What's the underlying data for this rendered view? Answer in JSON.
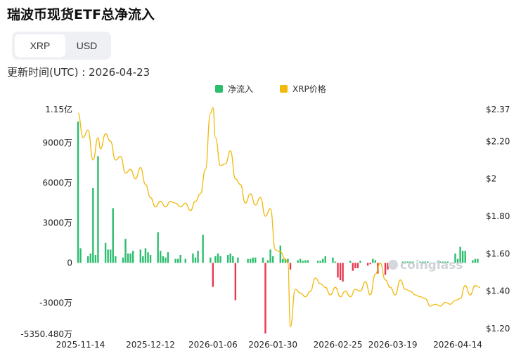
{
  "page": {
    "title": "瑞波币现货ETF总净流入",
    "updated": "更新时间(UTC) : 2026-04-23"
  },
  "tabs": [
    "XRP",
    "USD"
  ],
  "active_tab": "XRP",
  "watermark": "coinglass",
  "colors": {
    "inflow": "#2dbd6e",
    "outflow": "#e8384f",
    "price": "#f0b90b",
    "axis_text": "#222222"
  },
  "chart_data": {
    "type": "bar",
    "legend": [
      {
        "label": "净流入",
        "color": "#2dbd6e"
      },
      {
        "label": "XRP价格",
        "color": "#f0b90b"
      }
    ],
    "legend_position": "top-center",
    "grid": false,
    "x_ticks": [
      "2025-11-14",
      "2025-12-12",
      "2026-01-06",
      "2026-01-30",
      "2026-02-25",
      "2026-03-19",
      "2026-04-14"
    ],
    "y_left": {
      "min": -53504800,
      "max": 115000000,
      "ticks": [
        -53504800,
        -30000000,
        0,
        30000000,
        60000000,
        90000000,
        115000000
      ],
      "tick_labels": [
        "-5350.480万",
        "-3000万",
        "0",
        "3000万",
        "6000万",
        "9000万",
        "1.15亿"
      ]
    },
    "y_right": {
      "min": 1.17,
      "max": 2.37,
      "ticks": [
        1.2,
        1.4,
        1.6,
        1.8,
        2,
        2.2,
        2.37
      ],
      "tick_labels": [
        "$1.20",
        "$1.40",
        "$1.60",
        "$1.80",
        "$2",
        "$2.20",
        "$2.37"
      ]
    },
    "start_date": "2025-11-13",
    "end_date": "2026-04-23",
    "series": [
      {
        "name": "净流入",
        "dates": [
          "2025-11-13",
          "2025-11-14",
          "2025-11-17",
          "2025-11-18",
          "2025-11-19",
          "2025-11-20",
          "2025-11-21",
          "2025-11-24",
          "2025-11-25",
          "2025-11-26",
          "2025-11-27",
          "2025-11-28",
          "2025-12-01",
          "2025-12-02",
          "2025-12-03",
          "2025-12-04",
          "2025-12-05",
          "2025-12-08",
          "2025-12-09",
          "2025-12-10",
          "2025-12-11",
          "2025-12-12",
          "2025-12-15",
          "2025-12-16",
          "2025-12-17",
          "2025-12-18",
          "2025-12-19",
          "2025-12-22",
          "2025-12-23",
          "2025-12-24",
          "2025-12-26",
          "2025-12-29",
          "2025-12-30",
          "2025-12-31",
          "2026-01-02",
          "2026-01-05",
          "2026-01-06",
          "2026-01-07",
          "2026-01-08",
          "2026-01-09",
          "2026-01-12",
          "2026-01-13",
          "2026-01-14",
          "2026-01-15",
          "2026-01-16",
          "2026-01-20",
          "2026-01-21",
          "2026-01-22",
          "2026-01-23",
          "2026-01-26",
          "2026-01-27",
          "2026-01-28",
          "2026-01-29",
          "2026-01-30",
          "2026-02-02",
          "2026-02-03",
          "2026-02-04",
          "2026-02-05",
          "2026-02-06",
          "2026-02-09",
          "2026-02-10",
          "2026-02-11",
          "2026-02-12",
          "2026-02-13",
          "2026-02-17",
          "2026-02-18",
          "2026-02-19",
          "2026-02-20",
          "2026-02-23",
          "2026-02-24",
          "2026-02-25",
          "2026-02-26",
          "2026-02-27",
          "2026-03-02",
          "2026-03-03",
          "2026-03-04",
          "2026-03-05",
          "2026-03-06",
          "2026-03-09",
          "2026-03-10",
          "2026-03-11",
          "2026-03-12",
          "2026-03-13",
          "2026-03-16",
          "2026-03-17",
          "2026-03-18",
          "2026-03-19",
          "2026-03-20",
          "2026-03-23",
          "2026-03-24",
          "2026-03-25",
          "2026-03-26",
          "2026-03-27",
          "2026-03-30",
          "2026-03-31",
          "2026-04-01",
          "2026-04-02",
          "2026-04-06",
          "2026-04-07",
          "2026-04-08",
          "2026-04-09",
          "2026-04-10",
          "2026-04-13",
          "2026-04-14",
          "2026-04-15",
          "2026-04-16",
          "2026-04-17",
          "2026-04-20",
          "2026-04-21",
          "2026-04-22"
        ],
        "values": [
          106000000,
          11000000,
          5000000,
          7000000,
          56000000,
          6000000,
          80000000,
          15000000,
          10000000,
          10000000,
          41000000,
          5000000,
          4000000,
          18000000,
          7000000,
          7000000,
          9000000,
          10000000,
          5000000,
          11000000,
          8000000,
          6000000,
          23000000,
          9000000,
          5000000,
          4000000,
          8000000,
          3000000,
          3000000,
          6000000,
          3000000,
          7000000,
          4000000,
          9000000,
          21000000,
          4000000,
          -18000000,
          5000000,
          7000000,
          5000000,
          6000000,
          7000000,
          5000000,
          -28000000,
          4000000,
          3000000,
          3000000,
          4000000,
          4000000,
          4000000,
          -53000000,
          2000000,
          10000000,
          5000000,
          13000000,
          3000000,
          3000000,
          3000000,
          -5000000,
          2000000,
          3000000,
          1500000,
          2000000,
          2000000,
          1500000,
          1500000,
          3000000,
          5000000,
          4000000,
          1000000,
          -11000000,
          -13000000,
          -14000000,
          1500000,
          -6000000,
          -4000000,
          -4000000,
          1500000,
          -2000000,
          -1000000,
          3000000,
          2000000,
          -8000000,
          -9000000,
          -5000000,
          1000000,
          1000000,
          1000000,
          1000000,
          1000000,
          1000000,
          1000000,
          1000000,
          1000000,
          1000000,
          1000000,
          1000000,
          1000000,
          1000000,
          1000000,
          1000000,
          1000000,
          7000000,
          3000000,
          12000000,
          9000000,
          9000000,
          2000000,
          3000000,
          3000000
        ]
      },
      {
        "name": "XRP价格",
        "dates": [
          "2025-11-13",
          "2025-11-15",
          "2025-11-17",
          "2025-11-19",
          "2025-11-21",
          "2025-11-22",
          "2025-11-24",
          "2025-11-26",
          "2025-11-28",
          "2025-11-30",
          "2025-12-02",
          "2025-12-04",
          "2025-12-06",
          "2025-12-08",
          "2025-12-10",
          "2025-12-12",
          "2025-12-14",
          "2025-12-16",
          "2025-12-18",
          "2025-12-20",
          "2025-12-22",
          "2025-12-24",
          "2025-12-26",
          "2025-12-28",
          "2025-12-30",
          "2026-01-01",
          "2026-01-03",
          "2026-01-05",
          "2026-01-06",
          "2026-01-07",
          "2026-01-09",
          "2026-01-11",
          "2026-01-13",
          "2026-01-15",
          "2026-01-17",
          "2026-01-19",
          "2026-01-21",
          "2026-01-23",
          "2026-01-25",
          "2026-01-27",
          "2026-01-29",
          "2026-01-31",
          "2026-02-02",
          "2026-02-04",
          "2026-02-05",
          "2026-02-06",
          "2026-02-08",
          "2026-02-10",
          "2026-02-12",
          "2026-02-14",
          "2026-02-16",
          "2026-02-18",
          "2026-02-20",
          "2026-02-22",
          "2026-02-24",
          "2026-02-26",
          "2026-02-28",
          "2026-03-02",
          "2026-03-04",
          "2026-03-06",
          "2026-03-08",
          "2026-03-10",
          "2026-03-12",
          "2026-03-14",
          "2026-03-16",
          "2026-03-18",
          "2026-03-20",
          "2026-03-22",
          "2026-03-24",
          "2026-03-26",
          "2026-03-28",
          "2026-03-30",
          "2026-04-01",
          "2026-04-03",
          "2026-04-05",
          "2026-04-07",
          "2026-04-09",
          "2026-04-11",
          "2026-04-13",
          "2026-04-15",
          "2026-04-17",
          "2026-04-19",
          "2026-04-21",
          "2026-04-23"
        ],
        "values": [
          2.35,
          2.22,
          2.26,
          2.1,
          2.22,
          2.16,
          2.24,
          2.2,
          2.1,
          2.12,
          2.03,
          2.05,
          2.0,
          2.06,
          1.97,
          1.9,
          1.85,
          1.88,
          1.85,
          1.88,
          1.87,
          1.85,
          1.87,
          1.83,
          1.88,
          1.92,
          2.05,
          2.35,
          2.38,
          2.22,
          2.07,
          2.08,
          2.15,
          2.0,
          1.97,
          1.87,
          1.92,
          1.86,
          1.9,
          1.8,
          1.84,
          1.62,
          1.61,
          1.57,
          1.55,
          1.21,
          1.41,
          1.39,
          1.37,
          1.4,
          1.47,
          1.44,
          1.42,
          1.38,
          1.42,
          1.37,
          1.4,
          1.37,
          1.41,
          1.4,
          1.45,
          1.38,
          1.49,
          1.55,
          1.46,
          1.42,
          1.38,
          1.46,
          1.41,
          1.4,
          1.38,
          1.37,
          1.36,
          1.32,
          1.33,
          1.32,
          1.34,
          1.33,
          1.35,
          1.36,
          1.43,
          1.38,
          1.43,
          1.42
        ]
      }
    ]
  }
}
